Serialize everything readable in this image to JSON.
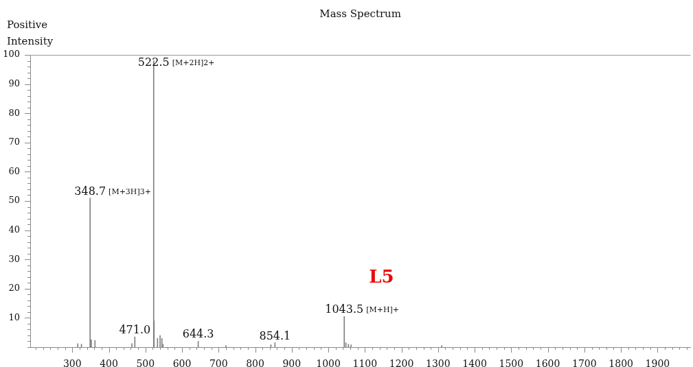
{
  "chart_data": {
    "type": "bar",
    "title": "Mass Spectrum",
    "ylabel": "Positive Intensity",
    "color": "#808080",
    "x": [
      315,
      325,
      348.7,
      352,
      362,
      463,
      471.0,
      522.5,
      523.5,
      533,
      540,
      545,
      548,
      644.3,
      720,
      843,
      854.1,
      1043.5,
      1048,
      1055,
      1062,
      1310
    ],
    "values": [
      1.2,
      1,
      51,
      2.5,
      2.3,
      1.2,
      3.5,
      98,
      9,
      3,
      4,
      3,
      1,
      2,
      0.5,
      0.8,
      1.5,
      10.5,
      1.5,
      1,
      0.8,
      0.5
    ],
    "xlim": [
      185,
      1990
    ],
    "xticks": [
      {
        "value": 200,
        "label": null
      },
      {
        "value": 220,
        "label": null
      },
      {
        "value": 240,
        "label": null
      },
      {
        "value": 260,
        "label": null
      },
      {
        "value": 280,
        "label": null
      },
      300,
      {
        "value": 320,
        "label": null
      },
      {
        "value": 340,
        "label": null
      },
      {
        "value": 360,
        "label": null
      },
      {
        "value": 380,
        "label": null
      },
      400,
      {
        "value": 420,
        "label": null
      },
      {
        "value": 440,
        "label": null
      },
      {
        "value": 460,
        "label": null
      },
      {
        "value": 480,
        "label": null
      },
      500,
      {
        "value": 520,
        "label": null
      },
      {
        "value": 540,
        "label": null
      },
      {
        "value": 560,
        "label": null
      },
      {
        "value": 580,
        "label": null
      },
      600,
      {
        "value": 620,
        "label": null
      },
      {
        "value": 640,
        "label": null
      },
      {
        "value": 660,
        "label": null
      },
      {
        "value": 680,
        "label": null
      },
      700,
      {
        "value": 720,
        "label": null
      },
      {
        "value": 740,
        "label": null
      },
      {
        "value": 760,
        "label": null
      },
      {
        "value": 780,
        "label": null
      },
      800,
      {
        "value": 820,
        "label": null
      },
      {
        "value": 840,
        "label": null
      },
      {
        "value": 860,
        "label": null
      },
      {
        "value": 880,
        "label": null
      },
      900,
      {
        "value": 920,
        "label": null
      },
      {
        "value": 940,
        "label": null
      },
      {
        "value": 960,
        "label": null
      },
      {
        "value": 980,
        "label": null
      },
      1000,
      {
        "value": 1020,
        "label": null
      },
      {
        "value": 1040,
        "label": null
      },
      {
        "value": 1060,
        "label": null
      },
      {
        "value": 1080,
        "label": null
      },
      1100,
      {
        "value": 1120,
        "label": null
      },
      {
        "value": 1140,
        "label": null
      },
      {
        "value": 1160,
        "label": null
      },
      {
        "value": 1180,
        "label": null
      },
      1200,
      {
        "value": 1220,
        "label": null
      },
      {
        "value": 1240,
        "label": null
      },
      {
        "value": 1260,
        "label": null
      },
      {
        "value": 1280,
        "label": null
      },
      1300,
      {
        "value": 1320,
        "label": null
      },
      {
        "value": 1340,
        "label": null
      },
      {
        "value": 1360,
        "label": null
      },
      {
        "value": 1380,
        "label": null
      },
      1400,
      {
        "value": 1420,
        "label": null
      },
      {
        "value": 1440,
        "label": null
      },
      {
        "value": 1460,
        "label": null
      },
      {
        "value": 1480,
        "label": null
      },
      1500,
      {
        "value": 1520,
        "label": null
      },
      {
        "value": 1540,
        "label": null
      },
      {
        "value": 1560,
        "label": null
      },
      {
        "value": 1580,
        "label": null
      },
      1600,
      {
        "value": 1620,
        "label": null
      },
      {
        "value": 1640,
        "label": null
      },
      {
        "value": 1660,
        "label": null
      },
      {
        "value": 1680,
        "label": null
      },
      1700,
      {
        "value": 1720,
        "label": null
      },
      {
        "value": 1740,
        "label": null
      },
      {
        "value": 1760,
        "label": null
      },
      {
        "value": 1780,
        "label": null
      },
      1800,
      {
        "value": 1820,
        "label": null
      },
      {
        "value": 1840,
        "label": null
      },
      {
        "value": 1860,
        "label": null
      },
      {
        "value": 1880,
        "label": null
      },
      1900,
      {
        "value": 1920,
        "label": null
      },
      {
        "value": 1940,
        "label": null
      },
      {
        "value": 1960,
        "label": null
      },
      {
        "value": 1980,
        "label": null
      }
    ],
    "ylim": [
      0,
      100
    ],
    "yticks": [
      {
        "value": 0,
        "label": null
      },
      {
        "value": 2,
        "label": null
      },
      {
        "value": 4,
        "label": null
      },
      {
        "value": 6,
        "label": null
      },
      {
        "value": 8,
        "label": null
      },
      10,
      {
        "value": 12,
        "label": null
      },
      {
        "value": 14,
        "label": null
      },
      {
        "value": 16,
        "label": null
      },
      {
        "value": 18,
        "label": null
      },
      20,
      {
        "value": 22,
        "label": null
      },
      {
        "value": 24,
        "label": null
      },
      {
        "value": 26,
        "label": null
      },
      {
        "value": 28,
        "label": null
      },
      30,
      {
        "value": 32,
        "label": null
      },
      {
        "value": 34,
        "label": null
      },
      {
        "value": 36,
        "label": null
      },
      {
        "value": 38,
        "label": null
      },
      40,
      {
        "value": 42,
        "label": null
      },
      {
        "value": 44,
        "label": null
      },
      {
        "value": 46,
        "label": null
      },
      {
        "value": 48,
        "label": null
      },
      50,
      {
        "value": 52,
        "label": null
      },
      {
        "value": 54,
        "label": null
      },
      {
        "value": 56,
        "label": null
      },
      {
        "value": 58,
        "label": null
      },
      60,
      {
        "value": 62,
        "label": null
      },
      {
        "value": 64,
        "label": null
      },
      {
        "value": 66,
        "label": null
      },
      {
        "value": 68,
        "label": null
      },
      70,
      {
        "value": 72,
        "label": null
      },
      {
        "value": 74,
        "label": null
      },
      {
        "value": 76,
        "label": null
      },
      {
        "value": 78,
        "label": null
      },
      80,
      {
        "value": 82,
        "label": null
      },
      {
        "value": 84,
        "label": null
      },
      {
        "value": 86,
        "label": null
      },
      {
        "value": 88,
        "label": null
      },
      90,
      {
        "value": 92,
        "label": null
      },
      {
        "value": 94,
        "label": null
      },
      {
        "value": 96,
        "label": null
      },
      {
        "value": 98,
        "label": null
      },
      100
    ],
    "annotations": [
      {
        "text": "348.7 [M+3H]3+",
        "x": 348.7,
        "y": 51
      },
      {
        "text": "522.5 [M+2H]2+",
        "x": 522.5,
        "y": 98
      },
      {
        "text": "471.0",
        "x": 471.0,
        "y": 3.5
      },
      {
        "text": "644.3",
        "x": 644.3,
        "y": 2
      },
      {
        "text": "854.1",
        "x": 854.1,
        "y": 1.5
      },
      {
        "text": "1043.5 [M+H]+",
        "x": 1043.5,
        "y": 10.5
      },
      "L5"
    ]
  }
}
